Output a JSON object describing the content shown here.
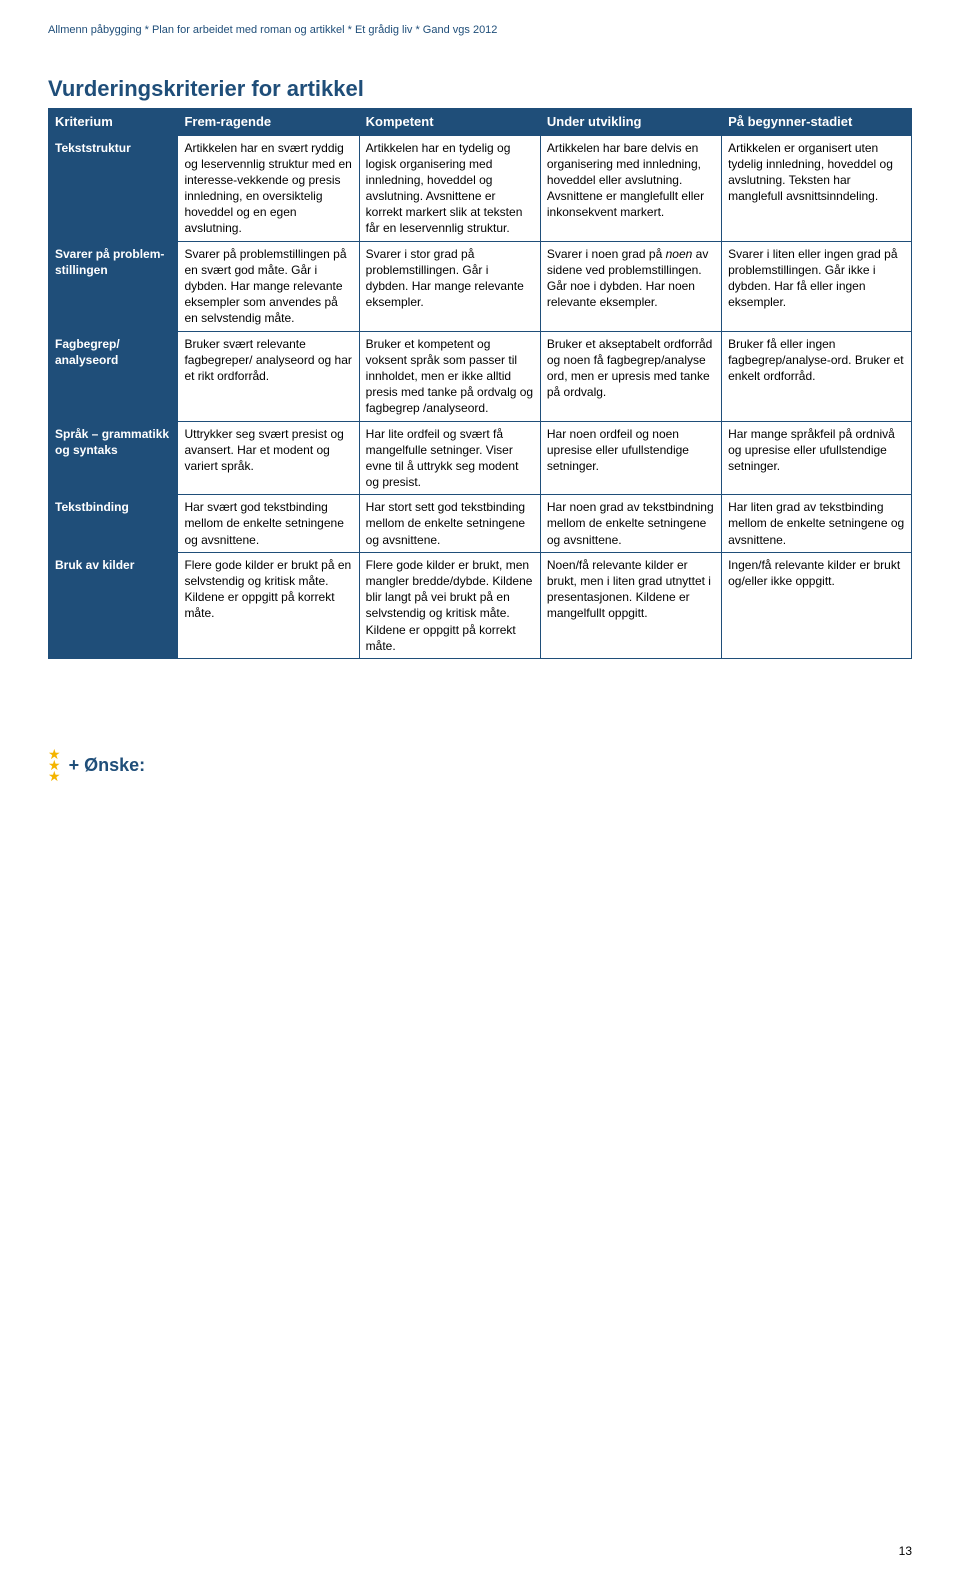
{
  "header": "Allmenn påbygging * Plan for arbeidet med roman og artikkel * Et grådig liv * Gand vgs 2012",
  "title": "Vurderingskriterier for artikkel",
  "columns": [
    "Kriterium",
    "Frem-ragende",
    "Kompetent",
    "Under utvikling",
    "På begynner-stadiet"
  ],
  "rows": [
    {
      "label": "Tekststruktur",
      "cells": [
        "Artikkelen har en svært ryddig og leservennlig struktur med en interesse-vekkende og presis innledning, en oversiktelig hoveddel og en egen avslutning.",
        "Artikkelen har en tydelig og logisk organisering med innledning, hoveddel og avslutning. Avsnittene er korrekt markert slik at teksten får en leservennlig struktur.",
        "Artikkelen har bare delvis en organisering med innledning, hoveddel eller avslutning. Avsnittene er manglefullt eller inkonsekvent markert.",
        "Artikkelen er organisert uten tydelig innledning, hoveddel og avslutning. Teksten har manglefull avsnittsinndeling."
      ]
    },
    {
      "label": "Svarer på problem-stillingen",
      "cells": [
        "Svarer på problemstillingen på en svært god måte. Går i dybden. Har mange relevante eksempler som anvendes på en selvstendig måte.",
        "Svarer i stor grad på problemstillingen. Går i dybden. Har mange relevante eksempler.",
        "Svarer i noen grad på <i>noen</i> av sidene ved problemstillingen. Går noe i dybden. Har noen relevante eksempler.",
        "Svarer i liten eller ingen grad på problemstillingen. Går ikke i dybden. Har få eller ingen eksempler."
      ]
    },
    {
      "label": "Fagbegrep/ analyseord",
      "cells": [
        "Bruker svært relevante fagbegreper/ analyseord og har et rikt ordforråd.",
        "Bruker et kompetent og voksent språk som passer til innholdet, men er ikke alltid presis med tanke på ordvalg og fagbegrep /analyseord.",
        "Bruker et akseptabelt ordforråd og noen få fagbegrep/analyse ord, men er upresis med tanke på ordvalg.",
        "Bruker få eller ingen fagbegrep/analyse-ord. Bruker et enkelt ordforråd."
      ]
    },
    {
      "label": "Språk – grammatikk og syntaks",
      "cells": [
        "Uttrykker seg svært presist og avansert. Har et modent og variert språk.",
        "Har lite ordfeil og svært få mangelfulle setninger. Viser evne til å uttrykk seg modent og presist.",
        "Har noen ordfeil og noen upresise eller ufullstendige setninger.",
        "Har mange språkfeil på ordnivå og upresise eller ufullstendige setninger."
      ]
    },
    {
      "label": "Tekstbinding",
      "cells": [
        "Har svært god tekstbinding mellom de enkelte setningene og avsnittene.",
        "Har stort sett god tekstbinding mellom de enkelte setningene og avsnittene.",
        "Har noen grad av tekstbindning mellom de enkelte setningene og avsnittene.",
        "Har liten grad av tekstbinding mellom de enkelte setningene og avsnittene."
      ]
    },
    {
      "label": "Bruk av kilder",
      "cells": [
        "Flere gode kilder er brukt på en selvstendig og kritisk måte. Kildene er oppgitt på korrekt måte.",
        "Flere gode kilder er brukt, men mangler bredde/dybde. Kildene blir langt på vei brukt på en selvstendig og kritisk måte. Kildene er oppgitt på korrekt måte.",
        "Noen/få relevante kilder er brukt, men i liten grad utnyttet i presentasjonen. Kildene er mangelfullt oppgitt.",
        "Ingen/få relevante kilder er brukt og/eller ikke oppgitt."
      ]
    }
  ],
  "onske": "+ Ønske:",
  "page": "13"
}
